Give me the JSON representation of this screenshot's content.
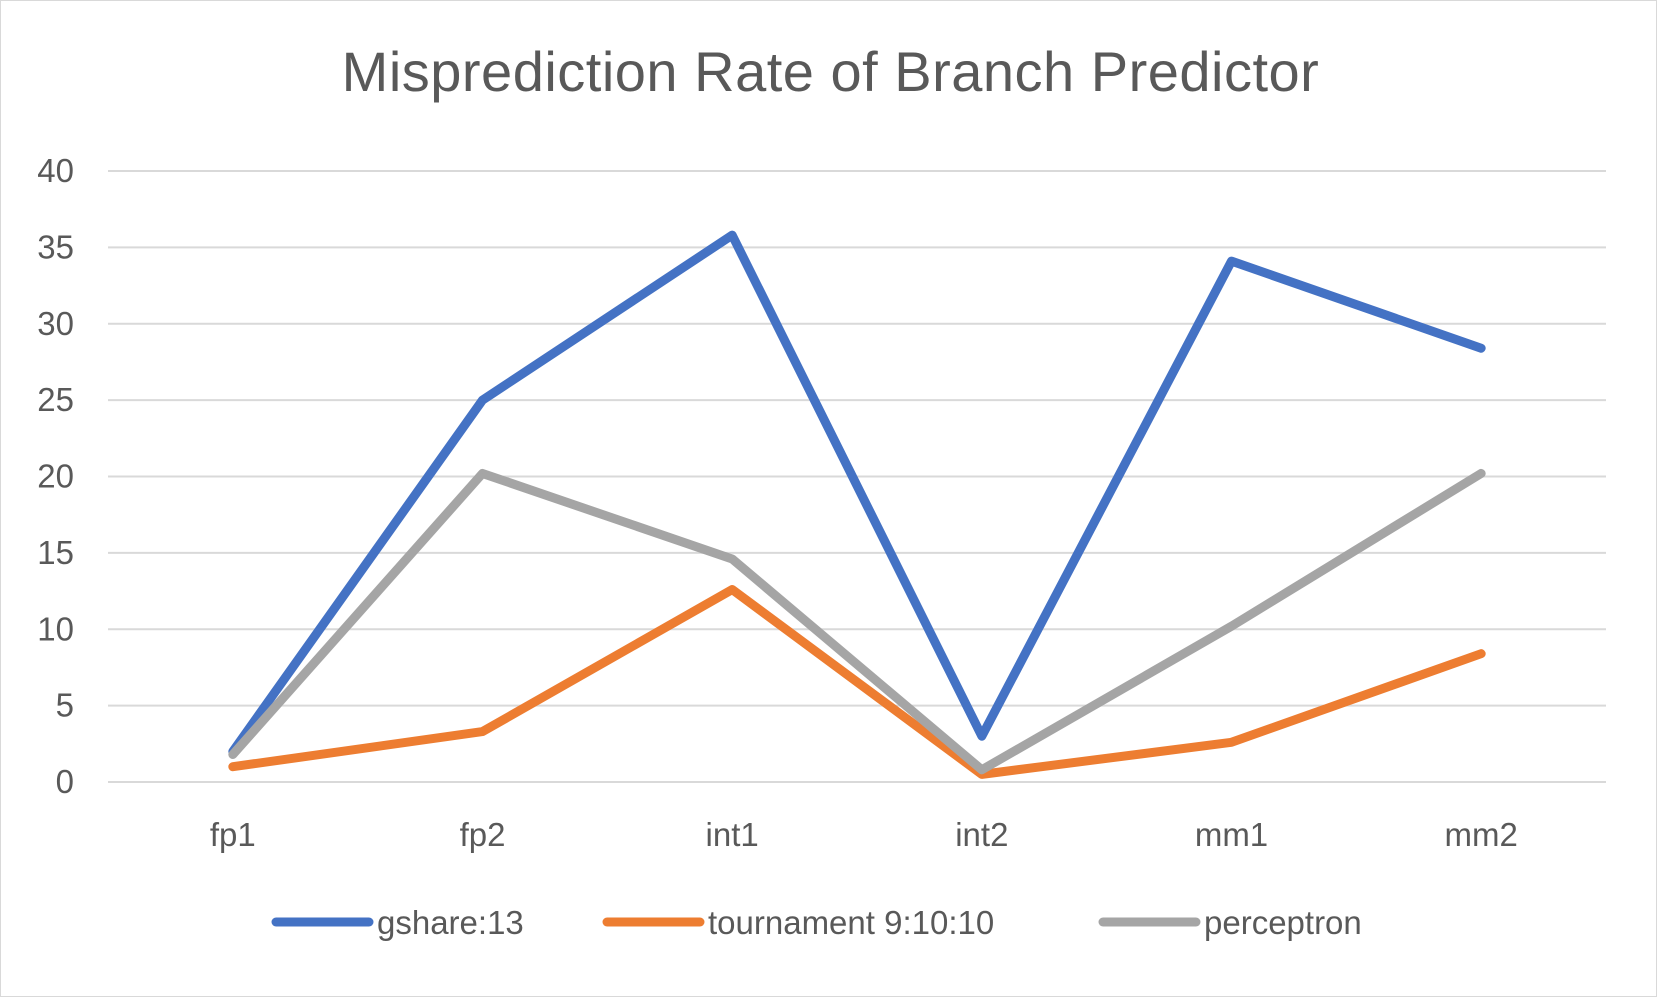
{
  "chart_data": {
    "type": "line",
    "title": "Misprediction Rate of Branch Predictor",
    "xlabel": "",
    "ylabel": "",
    "categories": [
      "fp1",
      "fp2",
      "int1",
      "int2",
      "mm1",
      "mm2"
    ],
    "ylim": [
      0,
      40
    ],
    "yticks": [
      0,
      5,
      10,
      15,
      20,
      25,
      30,
      35,
      40
    ],
    "grid": true,
    "legend_position": "bottom",
    "series": [
      {
        "name": "gshare:13",
        "color": "#4472C4",
        "values": [
          2.0,
          25.0,
          35.8,
          3.0,
          34.1,
          28.4
        ]
      },
      {
        "name": "tournament 9:10:10",
        "color": "#ED7D31",
        "values": [
          1.0,
          3.3,
          12.6,
          0.5,
          2.6,
          8.4
        ]
      },
      {
        "name": "perceptron",
        "color": "#A5A5A5",
        "values": [
          1.8,
          20.2,
          14.6,
          0.8,
          10.2,
          20.2
        ]
      }
    ]
  }
}
